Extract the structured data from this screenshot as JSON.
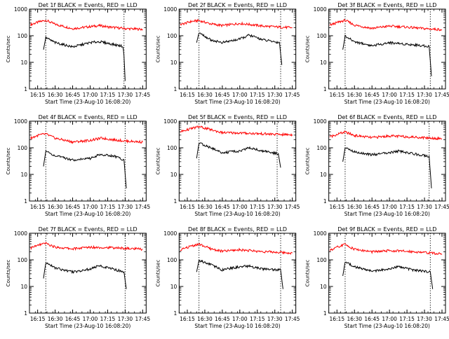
{
  "chart_data": {
    "type": "line",
    "layout": "3x3 grid",
    "y_scale": "log",
    "ylim": [
      1,
      1000
    ],
    "xlim": [
      "16:08",
      "17:48"
    ],
    "x_ticks": [
      "16:15",
      "16:30",
      "16:45",
      "17:00",
      "17:15",
      "17:30",
      "17:45"
    ],
    "y_ticks": [
      "1",
      "10",
      "100",
      "1000"
    ],
    "ylabel": "Counts/sec",
    "xlabel": "Start Time (23-Aug-10 16:08:20)",
    "colors": {
      "events": "#000000",
      "lld": "#ff0000"
    },
    "panels": [
      {
        "title": "Det 1f BLACK = Events, RED = LLD",
        "markers": [
          "16:22",
          "17:29"
        ],
        "series": [
          {
            "name": "LLD",
            "x": [
              "16:09",
              "16:16",
              "16:22",
              "16:30",
              "16:45",
              "17:00",
              "17:08",
              "17:15",
              "17:30",
              "17:45"
            ],
            "y": [
              260,
              330,
              380,
              270,
              185,
              220,
              240,
              215,
              185,
              175
            ]
          },
          {
            "name": "Events",
            "x": [
              "16:20",
              "16:22",
              "16:30",
              "16:45",
              "17:00",
              "17:08",
              "17:15",
              "17:28",
              "17:29",
              "17:30"
            ],
            "y": [
              30,
              85,
              55,
              38,
              55,
              60,
              52,
              40,
              18,
              2
            ]
          }
        ]
      },
      {
        "title": "Det 2f BLACK = Events, RED = LLD",
        "markers": [
          "16:25",
          "17:35"
        ],
        "series": [
          {
            "name": "LLD",
            "x": [
              "16:09",
              "16:18",
              "16:25",
              "16:35",
              "16:45",
              "17:00",
              "17:10",
              "17:20",
              "17:35",
              "17:45"
            ],
            "y": [
              260,
              340,
              370,
              280,
              240,
              290,
              260,
              230,
              210,
              200
            ]
          },
          {
            "name": "Events",
            "x": [
              "16:23",
              "16:25",
              "16:35",
              "16:45",
              "17:00",
              "17:08",
              "17:20",
              "17:34",
              "17:36"
            ],
            "y": [
              55,
              130,
              70,
              55,
              75,
              105,
              70,
              55,
              8
            ]
          }
        ]
      },
      {
        "title": "Det 3f BLACK = Events, RED = LLD",
        "markers": [
          "16:22",
          "17:35"
        ],
        "series": [
          {
            "name": "LLD",
            "x": [
              "16:09",
              "16:16",
              "16:22",
              "16:30",
              "16:45",
              "17:00",
              "17:15",
              "17:30",
              "17:45"
            ],
            "y": [
              250,
              320,
              380,
              250,
              190,
              230,
              210,
              185,
              170
            ]
          },
          {
            "name": "Events",
            "x": [
              "16:20",
              "16:22",
              "16:30",
              "16:45",
              "17:00",
              "17:15",
              "17:34",
              "17:36"
            ],
            "y": [
              30,
              95,
              60,
              42,
              55,
              48,
              40,
              3
            ]
          }
        ]
      },
      {
        "title": "Det 4f BLACK = Events, RED = LLD",
        "markers": [
          "16:22",
          "17:30"
        ],
        "series": [
          {
            "name": "LLD",
            "x": [
              "16:09",
              "16:16",
              "16:22",
              "16:30",
              "16:45",
              "17:00",
              "17:10",
              "17:20",
              "17:30",
              "17:45"
            ],
            "y": [
              230,
              300,
              330,
              230,
              165,
              190,
              230,
              200,
              180,
              165
            ]
          },
          {
            "name": "Events",
            "x": [
              "16:20",
              "16:22",
              "16:30",
              "16:45",
              "17:00",
              "17:08",
              "17:20",
              "17:29",
              "17:31"
            ],
            "y": [
              20,
              75,
              50,
              35,
              40,
              55,
              50,
              35,
              3
            ]
          }
        ]
      },
      {
        "title": "Det 5f BLACK = Events, RED = LLD",
        "markers": [
          "16:25",
          "17:32"
        ],
        "series": [
          {
            "name": "LLD",
            "x": [
              "16:09",
              "16:20",
              "16:25",
              "16:35",
              "16:45",
              "17:00",
              "17:15",
              "17:30",
              "17:45"
            ],
            "y": [
              400,
              550,
              620,
              480,
              370,
              360,
              340,
              320,
              310
            ]
          },
          {
            "name": "Events",
            "x": [
              "16:23",
              "16:25",
              "16:35",
              "16:45",
              "17:00",
              "17:08",
              "17:20",
              "17:33",
              "17:35"
            ],
            "y": [
              40,
              150,
              100,
              65,
              75,
              100,
              75,
              60,
              18
            ]
          }
        ]
      },
      {
        "title": "Det 6f BLACK = Events, RED = LLD",
        "markers": [
          "16:22",
          "17:34"
        ],
        "series": [
          {
            "name": "LLD",
            "x": [
              "16:09",
              "16:16",
              "16:22",
              "16:30",
              "16:45",
              "17:00",
              "17:15",
              "17:30",
              "17:45"
            ],
            "y": [
              260,
              330,
              390,
              290,
              240,
              280,
              260,
              240,
              220
            ]
          },
          {
            "name": "Events",
            "x": [
              "16:20",
              "16:22",
              "16:30",
              "16:45",
              "17:00",
              "17:08",
              "17:20",
              "17:34",
              "17:36"
            ],
            "y": [
              30,
              100,
              70,
              55,
              65,
              75,
              60,
              48,
              3
            ]
          }
        ]
      },
      {
        "title": "Det 7f BLACK = Events, RED = LLD",
        "markers": [
          "16:22",
          "17:30"
        ],
        "series": [
          {
            "name": "LLD",
            "x": [
              "16:09",
              "16:16",
              "16:22",
              "16:30",
              "16:45",
              "17:00",
              "17:15",
              "17:30",
              "17:45"
            ],
            "y": [
              280,
              360,
              420,
              300,
              260,
              300,
              290,
              270,
              250
            ]
          },
          {
            "name": "Events",
            "x": [
              "16:20",
              "16:22",
              "16:30",
              "16:45",
              "17:00",
              "17:08",
              "17:20",
              "17:29",
              "17:31"
            ],
            "y": [
              20,
              80,
              50,
              35,
              45,
              60,
              45,
              35,
              8
            ]
          }
        ]
      },
      {
        "title": "Det 8f BLACK = Events, RED = LLD",
        "markers": [
          "16:25",
          "17:35"
        ],
        "series": [
          {
            "name": "LLD",
            "x": [
              "16:09",
              "16:18",
              "16:25",
              "16:35",
              "16:45",
              "17:00",
              "17:15",
              "17:30",
              "17:45"
            ],
            "y": [
              230,
              330,
              390,
              260,
              210,
              240,
              210,
              195,
              180
            ]
          },
          {
            "name": "Events",
            "x": [
              "16:23",
              "16:25",
              "16:35",
              "16:45",
              "17:00",
              "17:08",
              "17:20",
              "17:35",
              "17:37"
            ],
            "y": [
              35,
              95,
              65,
              42,
              55,
              58,
              45,
              42,
              8
            ]
          }
        ]
      },
      {
        "title": "Det 9f BLACK = Events, RED = LLD",
        "markers": [
          "16:22",
          "17:35"
        ],
        "series": [
          {
            "name": "LLD",
            "x": [
              "16:09",
              "16:16",
              "16:22",
              "16:30",
              "16:45",
              "17:00",
              "17:15",
              "17:30",
              "17:45"
            ],
            "y": [
              220,
              310,
              380,
              250,
              200,
              220,
              210,
              190,
              165
            ]
          },
          {
            "name": "Events",
            "x": [
              "16:20",
              "16:22",
              "16:30",
              "16:45",
              "17:00",
              "17:08",
              "17:20",
              "17:35",
              "17:37"
            ],
            "y": [
              25,
              85,
              55,
              38,
              45,
              55,
              42,
              35,
              8
            ]
          }
        ]
      }
    ]
  }
}
